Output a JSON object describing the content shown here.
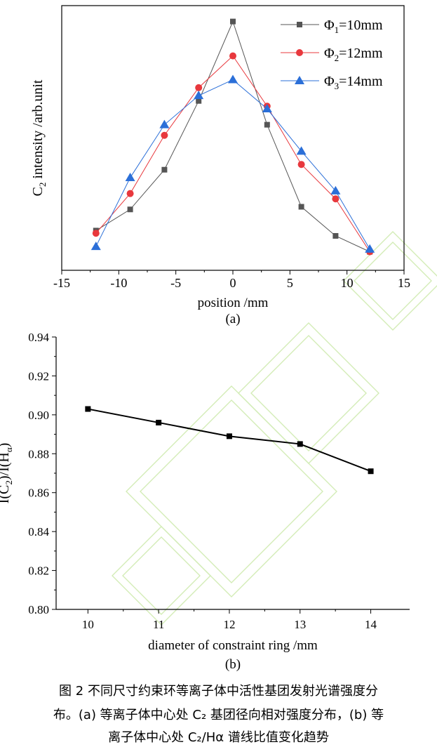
{
  "chart_data": [
    {
      "type": "line",
      "panel": "(a)",
      "xlabel": "position /mm",
      "ylabel_main": "C",
      "ylabel_sub": "2",
      "ylabel_rest": " intensity /arb.unit",
      "xlim": [
        -15,
        15
      ],
      "ylim": [
        0,
        1
      ],
      "xticks": [
        -15,
        -10,
        -5,
        0,
        5,
        10,
        15
      ],
      "yticks_shown": false,
      "grid": false,
      "legend_position": "top-right",
      "x": [
        -12,
        -9,
        -6,
        -3,
        0,
        3,
        6,
        9,
        12
      ],
      "series": [
        {
          "legend_main": "Φ",
          "legend_sub": "1",
          "legend_rest": "=10mm",
          "color": "#555555",
          "marker": "square",
          "values": [
            0.15,
            0.23,
            0.38,
            0.64,
            0.94,
            0.55,
            0.24,
            0.13,
            0.07
          ]
        },
        {
          "legend_main": "Φ",
          "legend_sub": "2",
          "legend_rest": "=12mm",
          "color": "#e8383d",
          "marker": "circle",
          "values": [
            0.14,
            0.29,
            0.51,
            0.69,
            0.81,
            0.62,
            0.4,
            0.27,
            0.07
          ]
        },
        {
          "legend_main": "Φ",
          "legend_sub": "3",
          "legend_rest": "=14mm",
          "color": "#2b6fd8",
          "marker": "triangle",
          "values": [
            0.09,
            0.35,
            0.55,
            0.66,
            0.72,
            0.61,
            0.45,
            0.3,
            0.08
          ]
        }
      ]
    },
    {
      "type": "line",
      "panel": "(b)",
      "xlabel": "diameter of constraint ring /mm",
      "ylabel_partial": "I(C",
      "ylabel_sub": "2",
      "ylabel_mid": ")/I(H",
      "ylabel_alpha": "α",
      "ylabel_end": ")",
      "xlim": [
        9.55,
        14.55
      ],
      "ylim": [
        0.8,
        0.94
      ],
      "xticks": [
        10,
        11,
        12,
        13,
        14
      ],
      "yticks": [
        "0.80",
        "0.82",
        "0.84",
        "0.86",
        "0.88",
        "0.90",
        "0.92",
        "0.94"
      ],
      "grid": false,
      "x": [
        10,
        11,
        12,
        13,
        14
      ],
      "series": [
        {
          "color": "#000000",
          "marker": "square",
          "values": [
            0.903,
            0.896,
            0.889,
            0.885,
            0.871
          ]
        }
      ]
    }
  ],
  "caption": {
    "line1": "图 2 不同尺寸约束环等离子体中活性基团发射光谱强度分",
    "line2": "布。(a) 等离子体中心处 C₂ 基团径向相对强度分布，(b) 等",
    "line3": "离子体中心处 C₂/Hα 谱线比值变化趋势"
  },
  "watermark_color": "#cfeab0"
}
